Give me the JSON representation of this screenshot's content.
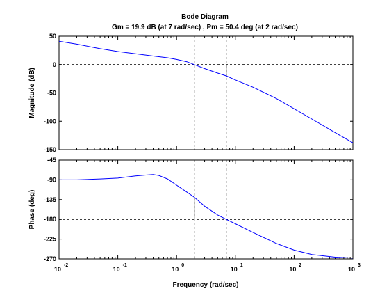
{
  "chart_data": {
    "type": "line",
    "title": "Bode Diagram",
    "subtitle": "Gm = 19.9 dB (at 7 rad/sec) ,  Pm = 50.4 deg (at 2 rad/sec)",
    "xlabel": "Frequency  (rad/sec)",
    "xscale": "log",
    "xlim": [
      0.01,
      1000
    ],
    "x_ticks": [
      {
        "value": 0.01,
        "base": "10",
        "exp": "-2"
      },
      {
        "value": 0.1,
        "base": "10",
        "exp": "-1"
      },
      {
        "value": 1,
        "base": "10",
        "exp": "0"
      },
      {
        "value": 10,
        "base": "10",
        "exp": "1"
      },
      {
        "value": 100,
        "base": "10",
        "exp": "2"
      },
      {
        "value": 1000,
        "base": "10",
        "exp": "3"
      }
    ],
    "gain_margin_freq": 7,
    "phase_margin_freq": 2,
    "magnitude": {
      "ylabel": "Magnitude (dB)",
      "ylim": [
        -150,
        50
      ],
      "yticks": [
        50,
        0,
        -50,
        -100,
        -150
      ],
      "reference_line": 0,
      "x": [
        0.01,
        0.02,
        0.05,
        0.1,
        0.2,
        0.4,
        0.7,
        1,
        1.5,
        2,
        3,
        5,
        7,
        10,
        20,
        50,
        100,
        200,
        500,
        1000
      ],
      "y": [
        41,
        36,
        28,
        23,
        19,
        15,
        12,
        9,
        5,
        0,
        -7,
        -15,
        -20,
        -27,
        -40,
        -60,
        -78,
        -96,
        -120,
        -138
      ]
    },
    "phase": {
      "ylabel": "Phase (deg)",
      "ylim": [
        -270,
        -45
      ],
      "yticks": [
        -45,
        -90,
        -135,
        -180,
        -225,
        -270
      ],
      "reference_line": -180,
      "x": [
        0.01,
        0.02,
        0.05,
        0.1,
        0.2,
        0.3,
        0.4,
        0.5,
        0.7,
        1,
        1.5,
        2,
        3,
        5,
        7,
        10,
        20,
        50,
        100,
        200,
        500,
        1000
      ],
      "y": [
        -90,
        -90,
        -88,
        -86,
        -81,
        -79,
        -78,
        -80,
        -88,
        -102,
        -118,
        -129.6,
        -150,
        -170,
        -180,
        -190,
        -210,
        -235,
        -250,
        -260,
        -266,
        -268
      ]
    }
  }
}
